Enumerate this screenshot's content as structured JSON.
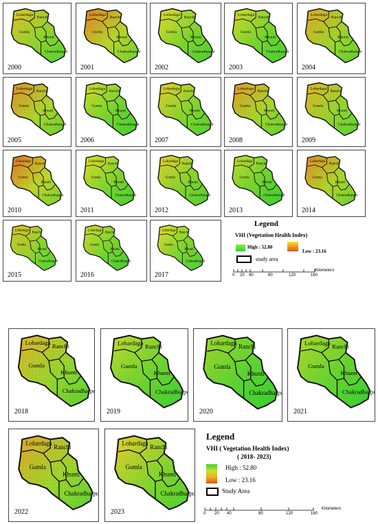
{
  "colors": {
    "high": "#34d132",
    "mid": "#e5dc2a",
    "low": "#e05520",
    "border": "#111111",
    "frame": "#444444"
  },
  "district_labels": {
    "lohardaga": "Lohardaga",
    "ranchi": "Ranchi",
    "gumla": "Gumla",
    "khunti": "Khunti",
    "chakradharpur": "Chakradharpur"
  },
  "top_panels": [
    {
      "year": "2000",
      "vhi_level": 0.4
    },
    {
      "year": "2001",
      "vhi_level": 0.15
    },
    {
      "year": "2002",
      "vhi_level": 0.5
    },
    {
      "year": "2003",
      "vhi_level": 0.55
    },
    {
      "year": "2004",
      "vhi_level": 0.3
    },
    {
      "year": "2005",
      "vhi_level": 0.2
    },
    {
      "year": "2006",
      "vhi_level": 0.55
    },
    {
      "year": "2007",
      "vhi_level": 0.45
    },
    {
      "year": "2008",
      "vhi_level": 0.25
    },
    {
      "year": "2009",
      "vhi_level": 0.35
    },
    {
      "year": "2010",
      "vhi_level": 0.1
    },
    {
      "year": "2011",
      "vhi_level": 0.5
    },
    {
      "year": "2012",
      "vhi_level": 0.45
    },
    {
      "year": "2013",
      "vhi_level": 0.6
    },
    {
      "year": "2014",
      "vhi_level": 0.2
    },
    {
      "year": "2015",
      "vhi_level": 0.4
    },
    {
      "year": "2016",
      "vhi_level": 0.55
    },
    {
      "year": "2017",
      "vhi_level": 0.5
    }
  ],
  "bottom_panels": [
    {
      "year": "2018",
      "vhi_level": 0.35
    },
    {
      "year": "2019",
      "vhi_level": 0.6
    },
    {
      "year": "2020",
      "vhi_level": 0.7
    },
    {
      "year": "2021",
      "vhi_level": 0.65
    },
    {
      "year": "2022",
      "vhi_level": 0.3
    },
    {
      "year": "2023",
      "vhi_level": 0.45
    }
  ],
  "legend_top": {
    "title": "Legend",
    "subtitle": "VHI (Vegetation Health Index)",
    "high": "High : 52.80",
    "low": "Low : 23.16",
    "study_area": "study area",
    "scale_ticks": [
      "0",
      "20",
      "40",
      "80",
      "120",
      "160"
    ],
    "scale_unit": "Kilometers"
  },
  "legend_bottom": {
    "title": "Legend",
    "subtitle": "VHI ( Vegetation Health Index)",
    "period": "( 2018- 2023)",
    "high": "High : 52.80",
    "low": "Low : 23.16",
    "study_area": "Study Area",
    "scale_ticks": [
      "0",
      "20",
      "40",
      "80",
      "120",
      "160"
    ],
    "scale_unit": "Kilometers"
  }
}
